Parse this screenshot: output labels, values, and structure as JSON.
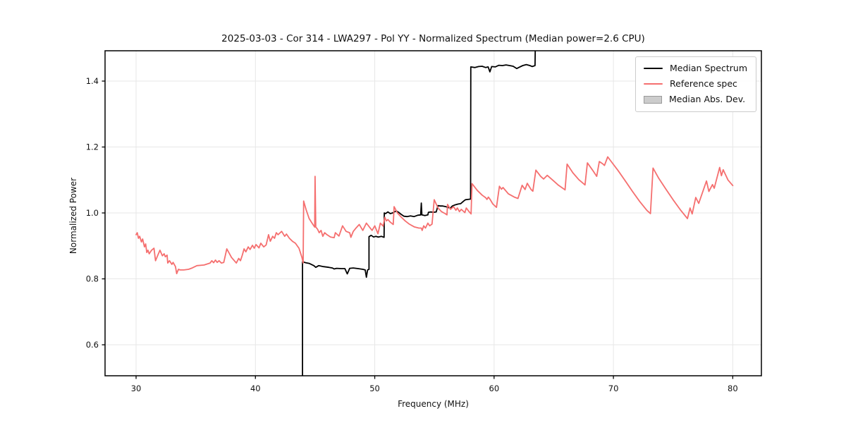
{
  "title": "2025-03-03 - Cor 314 - LWA297 - Pol YY - Normalized Spectrum (Median power=2.6 CPU)",
  "axes": {
    "xlabel": "Frequency (MHz)",
    "ylabel": "Normalized Power",
    "xlim": [
      27.4,
      82.4
    ],
    "ylim": [
      0.506,
      1.492
    ],
    "x_tick_values": [
      30,
      40,
      50,
      60,
      70,
      80
    ],
    "x_tick_labels": [
      "30",
      "40",
      "50",
      "60",
      "70",
      "80"
    ],
    "y_tick_values": [
      0.6,
      0.8,
      1.0,
      1.2,
      1.4
    ],
    "y_tick_labels": [
      "0.6",
      "0.8",
      "1.0",
      "1.2",
      "1.4"
    ],
    "grid": true
  },
  "colors": {
    "median_line": "#000000",
    "reference_line": "#f56f6f",
    "mad_patch_fill": "#cccccc",
    "mad_patch_edge": "#9a9a9a",
    "grid": "#e7e7e7",
    "spine": "#000000",
    "text": "#111111"
  },
  "legend": {
    "position": "upper right",
    "items": [
      {
        "label": "Median Spectrum",
        "type": "line",
        "color": "#000000"
      },
      {
        "label": "Reference spec",
        "type": "line",
        "color": "#f56f6f"
      },
      {
        "label": "Median Abs. Dev.",
        "type": "patch",
        "color": "#cccccc"
      }
    ]
  },
  "chart_data": {
    "type": "line",
    "title": "2025-03-03 - Cor 314 - LWA297 - Pol YY - Normalized Spectrum (Median power=2.6 CPU)",
    "xlabel": "Frequency (MHz)",
    "ylabel": "Normalized Power",
    "xlim": [
      27.4,
      82.4
    ],
    "ylim": [
      0.506,
      1.492
    ],
    "legend_position": "upper right",
    "grid": true,
    "series": [
      {
        "name": "Median Spectrum",
        "color": "#000000",
        "width": 1.8,
        "points": [
          [
            43.95,
            0.506
          ],
          [
            43.95,
            0.852
          ],
          [
            44.2,
            0.849
          ],
          [
            44.5,
            0.847
          ],
          [
            44.9,
            0.84
          ],
          [
            45.06,
            0.835
          ],
          [
            45.3,
            0.84
          ],
          [
            45.7,
            0.837
          ],
          [
            46.15,
            0.835
          ],
          [
            46.45,
            0.833
          ],
          [
            46.6,
            0.83
          ],
          [
            46.8,
            0.832
          ],
          [
            47.2,
            0.831
          ],
          [
            47.5,
            0.831
          ],
          [
            47.7,
            0.815
          ],
          [
            47.9,
            0.832
          ],
          [
            48.2,
            0.833
          ],
          [
            48.6,
            0.831
          ],
          [
            49.0,
            0.829
          ],
          [
            49.2,
            0.827
          ],
          [
            49.3,
            0.805
          ],
          [
            49.4,
            0.827
          ],
          [
            49.52,
            0.829
          ],
          [
            49.52,
            0.928
          ],
          [
            49.7,
            0.932
          ],
          [
            49.9,
            0.927
          ],
          [
            50.1,
            0.929
          ],
          [
            50.3,
            0.927
          ],
          [
            50.55,
            0.929
          ],
          [
            50.78,
            0.926
          ],
          [
            50.8,
            1.0
          ],
          [
            50.9,
            0.998
          ],
          [
            51.1,
            1.003
          ],
          [
            51.3,
            0.998
          ],
          [
            51.5,
            1.0
          ],
          [
            51.8,
            1.006
          ],
          [
            52.0,
            1.002
          ],
          [
            52.2,
            0.996
          ],
          [
            52.45,
            0.99
          ],
          [
            52.7,
            0.989
          ],
          [
            53.0,
            0.991
          ],
          [
            53.3,
            0.989
          ],
          [
            53.6,
            0.993
          ],
          [
            53.85,
            0.994
          ],
          [
            53.9,
            1.03
          ],
          [
            53.95,
            0.994
          ],
          [
            54.2,
            0.992
          ],
          [
            54.45,
            0.994
          ],
          [
            54.5,
            1.002
          ],
          [
            54.7,
            1.003
          ],
          [
            54.9,
            1.002
          ],
          [
            55.15,
            1.003
          ],
          [
            55.3,
            1.022
          ],
          [
            55.5,
            1.021
          ],
          [
            55.7,
            1.021
          ],
          [
            55.95,
            1.019
          ],
          [
            56.1,
            1.017
          ],
          [
            56.35,
            1.015
          ],
          [
            56.5,
            1.021
          ],
          [
            56.7,
            1.024
          ],
          [
            57.0,
            1.027
          ],
          [
            57.2,
            1.028
          ],
          [
            57.45,
            1.036
          ],
          [
            57.6,
            1.04
          ],
          [
            57.8,
            1.041
          ],
          [
            58.03,
            1.042
          ],
          [
            58.05,
            1.443
          ],
          [
            58.4,
            1.441
          ],
          [
            58.7,
            1.444
          ],
          [
            59.0,
            1.445
          ],
          [
            59.3,
            1.441
          ],
          [
            59.5,
            1.443
          ],
          [
            59.65,
            1.428
          ],
          [
            59.8,
            1.444
          ],
          [
            60.1,
            1.443
          ],
          [
            60.4,
            1.448
          ],
          [
            60.7,
            1.447
          ],
          [
            61.0,
            1.449
          ],
          [
            61.3,
            1.447
          ],
          [
            61.6,
            1.445
          ],
          [
            61.9,
            1.438
          ],
          [
            62.1,
            1.442
          ],
          [
            62.4,
            1.447
          ],
          [
            62.7,
            1.45
          ],
          [
            63.0,
            1.447
          ],
          [
            63.2,
            1.444
          ],
          [
            63.43,
            1.447
          ],
          [
            63.45,
            1.492
          ]
        ]
      },
      {
        "name": "Reference spec",
        "color": "#f56f6f",
        "width": 1.8,
        "points": [
          [
            30.0,
            0.934
          ],
          [
            30.1,
            0.94
          ],
          [
            30.2,
            0.923
          ],
          [
            30.3,
            0.929
          ],
          [
            30.45,
            0.912
          ],
          [
            30.55,
            0.921
          ],
          [
            30.7,
            0.897
          ],
          [
            30.8,
            0.906
          ],
          [
            30.9,
            0.88
          ],
          [
            31.0,
            0.887
          ],
          [
            31.1,
            0.876
          ],
          [
            31.3,
            0.887
          ],
          [
            31.5,
            0.893
          ],
          [
            31.63,
            0.855
          ],
          [
            31.8,
            0.87
          ],
          [
            32.0,
            0.887
          ],
          [
            32.2,
            0.87
          ],
          [
            32.35,
            0.876
          ],
          [
            32.45,
            0.867
          ],
          [
            32.6,
            0.872
          ],
          [
            32.65,
            0.848
          ],
          [
            32.8,
            0.855
          ],
          [
            33.0,
            0.844
          ],
          [
            33.1,
            0.85
          ],
          [
            33.3,
            0.837
          ],
          [
            33.4,
            0.816
          ],
          [
            33.55,
            0.829
          ],
          [
            33.7,
            0.827
          ],
          [
            34.0,
            0.827
          ],
          [
            34.4,
            0.829
          ],
          [
            34.7,
            0.833
          ],
          [
            35.1,
            0.84
          ],
          [
            35.7,
            0.842
          ],
          [
            36.2,
            0.848
          ],
          [
            36.35,
            0.855
          ],
          [
            36.5,
            0.849
          ],
          [
            36.65,
            0.857
          ],
          [
            36.8,
            0.85
          ],
          [
            36.95,
            0.855
          ],
          [
            37.15,
            0.848
          ],
          [
            37.35,
            0.85
          ],
          [
            37.6,
            0.891
          ],
          [
            38.0,
            0.865
          ],
          [
            38.4,
            0.848
          ],
          [
            38.6,
            0.862
          ],
          [
            38.75,
            0.855
          ],
          [
            38.9,
            0.872
          ],
          [
            39.05,
            0.891
          ],
          [
            39.2,
            0.882
          ],
          [
            39.4,
            0.897
          ],
          [
            39.55,
            0.889
          ],
          [
            39.75,
            0.902
          ],
          [
            39.9,
            0.893
          ],
          [
            40.05,
            0.904
          ],
          [
            40.3,
            0.894
          ],
          [
            40.45,
            0.908
          ],
          [
            40.7,
            0.897
          ],
          [
            40.9,
            0.903
          ],
          [
            41.1,
            0.934
          ],
          [
            41.25,
            0.914
          ],
          [
            41.45,
            0.929
          ],
          [
            41.6,
            0.923
          ],
          [
            41.75,
            0.94
          ],
          [
            41.9,
            0.934
          ],
          [
            42.2,
            0.944
          ],
          [
            42.45,
            0.929
          ],
          [
            42.6,
            0.936
          ],
          [
            42.85,
            0.923
          ],
          [
            43.1,
            0.914
          ],
          [
            43.35,
            0.908
          ],
          [
            43.65,
            0.893
          ],
          [
            43.9,
            0.865
          ],
          [
            44.0,
            0.848
          ],
          [
            44.04,
            1.036
          ],
          [
            44.25,
            1.01
          ],
          [
            44.5,
            0.983
          ],
          [
            44.8,
            0.966
          ],
          [
            44.97,
            0.957
          ],
          [
            45.0,
            1.111
          ],
          [
            45.06,
            0.957
          ],
          [
            45.2,
            0.951
          ],
          [
            45.35,
            0.94
          ],
          [
            45.5,
            0.947
          ],
          [
            45.65,
            0.929
          ],
          [
            45.8,
            0.94
          ],
          [
            46.0,
            0.934
          ],
          [
            46.3,
            0.927
          ],
          [
            46.6,
            0.925
          ],
          [
            46.7,
            0.94
          ],
          [
            47.0,
            0.93
          ],
          [
            47.3,
            0.961
          ],
          [
            47.6,
            0.944
          ],
          [
            47.9,
            0.94
          ],
          [
            48.0,
            0.926
          ],
          [
            48.2,
            0.944
          ],
          [
            48.45,
            0.955
          ],
          [
            48.7,
            0.965
          ],
          [
            49.0,
            0.947
          ],
          [
            49.3,
            0.969
          ],
          [
            49.6,
            0.955
          ],
          [
            49.78,
            0.947
          ],
          [
            50.0,
            0.961
          ],
          [
            50.27,
            0.937
          ],
          [
            50.47,
            0.969
          ],
          [
            50.7,
            0.96
          ],
          [
            50.85,
            0.987
          ],
          [
            50.97,
            0.976
          ],
          [
            51.1,
            0.98
          ],
          [
            51.3,
            0.972
          ],
          [
            51.55,
            0.965
          ],
          [
            51.62,
            1.019
          ],
          [
            51.9,
            1.0
          ],
          [
            52.2,
            0.988
          ],
          [
            52.55,
            0.976
          ],
          [
            52.9,
            0.966
          ],
          [
            53.3,
            0.958
          ],
          [
            53.7,
            0.954
          ],
          [
            53.9,
            0.954
          ],
          [
            53.97,
            0.947
          ],
          [
            54.1,
            0.961
          ],
          [
            54.25,
            0.954
          ],
          [
            54.45,
            0.969
          ],
          [
            54.6,
            0.961
          ],
          [
            54.8,
            0.966
          ],
          [
            54.98,
            1.04
          ],
          [
            55.3,
            1.015
          ],
          [
            55.6,
            1.004
          ],
          [
            55.9,
            0.998
          ],
          [
            56.05,
            0.994
          ],
          [
            56.1,
            1.026
          ],
          [
            56.35,
            1.011
          ],
          [
            56.6,
            1.019
          ],
          [
            56.8,
            1.008
          ],
          [
            56.92,
            1.015
          ],
          [
            57.1,
            1.004
          ],
          [
            57.25,
            1.011
          ],
          [
            57.55,
            1.001
          ],
          [
            57.67,
            1.015
          ],
          [
            57.9,
            1.004
          ],
          [
            58.07,
            0.997
          ],
          [
            58.15,
            1.089
          ],
          [
            58.6,
            1.068
          ],
          [
            59.0,
            1.054
          ],
          [
            59.3,
            1.046
          ],
          [
            59.4,
            1.041
          ],
          [
            59.52,
            1.048
          ],
          [
            59.65,
            1.042
          ],
          [
            59.9,
            1.027
          ],
          [
            60.2,
            1.017
          ],
          [
            60.45,
            1.081
          ],
          [
            60.62,
            1.072
          ],
          [
            60.75,
            1.077
          ],
          [
            61.2,
            1.058
          ],
          [
            61.7,
            1.048
          ],
          [
            62.0,
            1.044
          ],
          [
            62.35,
            1.084
          ],
          [
            62.6,
            1.071
          ],
          [
            62.78,
            1.09
          ],
          [
            63.1,
            1.071
          ],
          [
            63.25,
            1.066
          ],
          [
            63.5,
            1.13
          ],
          [
            63.9,
            1.111
          ],
          [
            64.15,
            1.103
          ],
          [
            64.45,
            1.114
          ],
          [
            64.9,
            1.1
          ],
          [
            65.4,
            1.084
          ],
          [
            65.95,
            1.07
          ],
          [
            66.12,
            1.148
          ],
          [
            66.6,
            1.122
          ],
          [
            67.1,
            1.101
          ],
          [
            67.62,
            1.085
          ],
          [
            67.82,
            1.152
          ],
          [
            68.25,
            1.13
          ],
          [
            68.6,
            1.111
          ],
          [
            68.82,
            1.156
          ],
          [
            69.1,
            1.149
          ],
          [
            69.25,
            1.144
          ],
          [
            69.52,
            1.17
          ],
          [
            69.9,
            1.152
          ],
          [
            70.4,
            1.128
          ],
          [
            71.0,
            1.097
          ],
          [
            71.6,
            1.065
          ],
          [
            72.2,
            1.035
          ],
          [
            72.8,
            1.008
          ],
          [
            73.1,
            0.998
          ],
          [
            73.32,
            1.136
          ],
          [
            73.8,
            1.105
          ],
          [
            74.4,
            1.072
          ],
          [
            75.0,
            1.04
          ],
          [
            75.6,
            1.01
          ],
          [
            76.2,
            0.983
          ],
          [
            76.42,
            1.015
          ],
          [
            76.6,
            0.997
          ],
          [
            76.9,
            1.047
          ],
          [
            77.15,
            1.029
          ],
          [
            77.8,
            1.097
          ],
          [
            78.0,
            1.065
          ],
          [
            78.3,
            1.086
          ],
          [
            78.45,
            1.075
          ],
          [
            78.9,
            1.138
          ],
          [
            79.05,
            1.113
          ],
          [
            79.2,
            1.131
          ],
          [
            79.6,
            1.1
          ],
          [
            80.0,
            1.083
          ]
        ]
      }
    ]
  }
}
